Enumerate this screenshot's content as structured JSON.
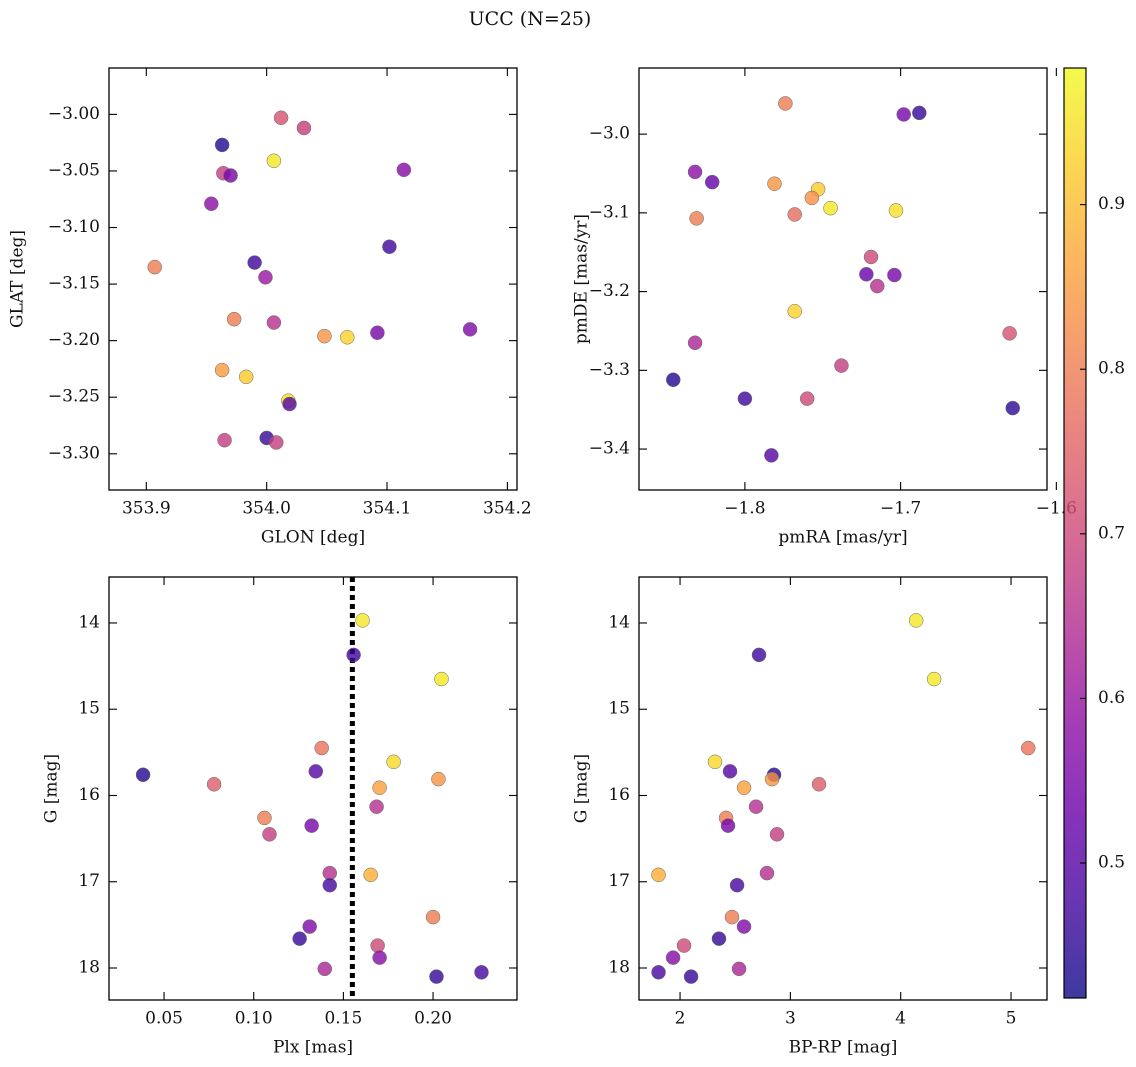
{
  "title": "UCC (N=25)",
  "chart_data": [
    {
      "type": "scatter",
      "xlabel": "GLON [deg]",
      "ylabel": "GLAT [deg]",
      "colormap": "plasma",
      "x": [
        354.012,
        354.031,
        353.963,
        354.006,
        354.114,
        353.964,
        353.97,
        353.954,
        354.102,
        353.907,
        353.99,
        353.999,
        353.973,
        354.006,
        354.048,
        354.067,
        354.092,
        354.169,
        353.963,
        353.983,
        354.018,
        354.019,
        353.965,
        354.0,
        354.008
      ],
      "y": [
        -3.003,
        -3.012,
        -3.027,
        -3.041,
        -3.049,
        -3.052,
        -3.054,
        -3.079,
        -3.117,
        -3.135,
        -3.131,
        -3.144,
        -3.181,
        -3.184,
        -3.196,
        -3.197,
        -3.193,
        -3.19,
        -3.226,
        -3.232,
        -3.253,
        -3.256,
        -3.288,
        -3.286,
        -3.29
      ],
      "c": [
        0.72,
        0.68,
        0.44,
        0.96,
        0.57,
        0.68,
        0.55,
        0.58,
        0.47,
        0.8,
        0.47,
        0.6,
        0.8,
        0.65,
        0.84,
        0.93,
        0.55,
        0.56,
        0.85,
        0.92,
        0.95,
        0.5,
        0.68,
        0.46,
        0.68
      ],
      "xlim": [
        353.869,
        354.208
      ],
      "ylim": [
        -3.332,
        -2.959
      ],
      "xticks": [
        353.9,
        {
          "value": 354.0,
          "label": "354.0"
        },
        354.1,
        354.2
      ],
      "yticks": [
        {
          "value": -3.0,
          "label": "−3.00"
        },
        {
          "value": -3.05,
          "label": "−3.05"
        },
        {
          "value": -3.1,
          "label": "−3.10"
        },
        {
          "value": -3.15,
          "label": "−3.15"
        },
        {
          "value": -3.2,
          "label": "−3.20"
        },
        {
          "value": -3.25,
          "label": "−3.25"
        },
        {
          "value": -3.3,
          "label": "−3.30"
        }
      ]
    },
    {
      "type": "scatter",
      "xlabel": "pmRA [mas/yr]",
      "ylabel": "pmDE [mas/yr]",
      "colormap": "plasma",
      "x": [
        -1.774,
        -1.698,
        -1.688,
        -1.832,
        -1.821,
        -1.781,
        -1.753,
        -1.745,
        -1.757,
        -1.768,
        -1.831,
        -1.703,
        -1.719,
        -1.722,
        -1.715,
        -1.704,
        -1.768,
        -1.63,
        -1.832,
        -1.738,
        -1.846,
        -1.76,
        -1.8,
        -1.628,
        -1.783
      ],
      "y": [
        -2.961,
        -2.975,
        -2.973,
        -3.048,
        -3.061,
        -3.063,
        -3.07,
        -3.094,
        -3.081,
        -3.102,
        -3.107,
        -3.097,
        -3.156,
        -3.178,
        -3.193,
        -3.179,
        -3.225,
        -3.253,
        -3.265,
        -3.294,
        -3.312,
        -3.336,
        -3.336,
        -3.348,
        -3.408
      ],
      "c": [
        0.8,
        0.55,
        0.46,
        0.58,
        0.52,
        0.84,
        0.92,
        0.96,
        0.83,
        0.77,
        0.8,
        0.95,
        0.7,
        0.53,
        0.65,
        0.55,
        0.93,
        0.72,
        0.63,
        0.68,
        0.44,
        0.7,
        0.47,
        0.45,
        0.5
      ],
      "xlim": [
        -1.868,
        -1.606
      ],
      "ylim": [
        -3.452,
        -2.916
      ],
      "xticks": [
        {
          "value": -1.8,
          "label": "−1.8"
        },
        {
          "value": -1.7,
          "label": "−1.7"
        },
        {
          "value": -1.6,
          "label": "−1.6"
        }
      ],
      "yticks": [
        {
          "value": -3.0,
          "label": "−3.0"
        },
        {
          "value": -3.1,
          "label": "−3.1"
        },
        {
          "value": -3.2,
          "label": "−3.2"
        },
        {
          "value": -3.3,
          "label": "−3.3"
        },
        {
          "value": -3.4,
          "label": "−3.4"
        }
      ]
    },
    {
      "type": "scatter",
      "xlabel": "Plx [mas]",
      "ylabel": "G [mag]",
      "colormap": "plasma",
      "vline": 0.155,
      "x": [
        0.1607,
        0.1557,
        0.2047,
        0.1379,
        0.178,
        0.0383,
        0.1346,
        0.0779,
        0.1702,
        0.203,
        0.1685,
        0.106,
        0.1323,
        0.1088,
        0.1424,
        0.1652,
        0.1424,
        0.2,
        0.1312,
        0.1256,
        0.1691,
        0.1702,
        0.1396,
        0.2019,
        0.227
      ],
      "y": [
        13.97,
        14.37,
        14.65,
        15.45,
        15.61,
        15.76,
        15.72,
        15.87,
        15.91,
        15.81,
        16.13,
        16.26,
        16.35,
        16.45,
        16.9,
        16.92,
        17.04,
        17.41,
        17.52,
        17.66,
        17.74,
        17.88,
        18.01,
        18.1,
        18.05
      ],
      "c": [
        0.96,
        0.47,
        0.96,
        0.78,
        0.94,
        0.44,
        0.5,
        0.74,
        0.86,
        0.84,
        0.65,
        0.8,
        0.55,
        0.68,
        0.65,
        0.88,
        0.48,
        0.8,
        0.56,
        0.46,
        0.7,
        0.57,
        0.63,
        0.46,
        0.48
      ],
      "xlim": [
        0.0193,
        0.2468
      ],
      "ylim": [
        18.371,
        13.467
      ],
      "xticks": [
        0.05,
        {
          "value": 0.1,
          "label": "0.10"
        },
        0.15,
        {
          "value": 0.2,
          "label": "0.20"
        }
      ],
      "yticks": [
        14,
        15,
        16,
        17,
        18
      ]
    },
    {
      "type": "scatter",
      "xlabel": "BP-RP [mag]",
      "ylabel": "G [mag]",
      "colormap": "plasma",
      "x": [
        4.14,
        2.716,
        4.303,
        5.156,
        2.317,
        2.852,
        2.453,
        3.26,
        2.58,
        2.834,
        2.689,
        2.417,
        2.435,
        2.879,
        2.788,
        1.805,
        2.517,
        2.471,
        2.58,
        2.353,
        2.036,
        1.937,
        2.535,
        2.1,
        1.805
      ],
      "y": [
        13.97,
        14.37,
        14.65,
        15.45,
        15.61,
        15.76,
        15.72,
        15.87,
        15.91,
        15.81,
        16.13,
        16.26,
        16.35,
        16.45,
        16.9,
        16.92,
        17.04,
        17.41,
        17.52,
        17.66,
        17.74,
        17.88,
        18.01,
        18.1,
        18.05
      ],
      "c": [
        0.96,
        0.47,
        0.96,
        0.78,
        0.94,
        0.44,
        0.5,
        0.74,
        0.86,
        0.84,
        0.65,
        0.8,
        0.55,
        0.68,
        0.65,
        0.88,
        0.48,
        0.8,
        0.56,
        0.46,
        0.7,
        0.57,
        0.63,
        0.46,
        0.48
      ],
      "xlim": [
        1.628,
        5.326
      ],
      "ylim": [
        18.371,
        13.467
      ],
      "xticks": [
        2,
        3,
        4,
        5
      ],
      "yticks": [
        14,
        15,
        16,
        17,
        18
      ]
    }
  ],
  "colorbar": {
    "colormap": "plasma",
    "clim": [
      0.418,
      0.983
    ],
    "cticks": [
      0.5,
      0.6,
      0.7,
      0.8,
      0.9
    ]
  }
}
